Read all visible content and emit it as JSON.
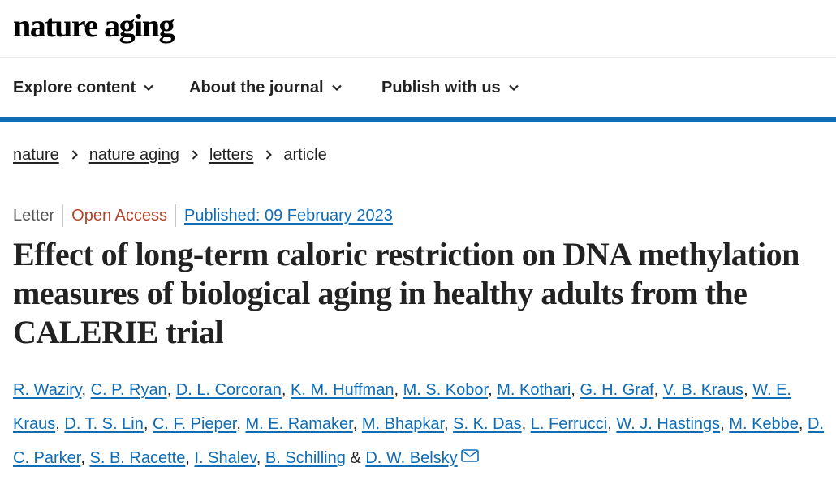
{
  "brand": {
    "logo_text": "nature aging"
  },
  "nav": {
    "items": [
      {
        "label": "Explore content",
        "icon": "chevron-down-icon"
      },
      {
        "label": "About the journal",
        "icon": "chevron-down-icon"
      },
      {
        "label": "Publish with us",
        "icon": "chevron-down-icon"
      }
    ],
    "accent_color": "#0f6cb5"
  },
  "breadcrumb": {
    "items": [
      "nature",
      "nature aging",
      "letters"
    ],
    "current": "article"
  },
  "article": {
    "type": "Letter",
    "access": "Open Access",
    "published": "Published: 09 February 2023",
    "title": "Effect of long-term caloric restriction on DNA methylation measures of biological aging in healthy adults from the CALERIE trial",
    "authors": [
      "R. Waziry",
      "C. P. Ryan",
      "D. L. Corcoran",
      "K. M. Huffman",
      "M. S. Kobor",
      "M. Kothari",
      "G. H. Graf",
      "V. B. Kraus",
      "W. E. Kraus",
      "D. T. S. Lin",
      "C. F. Pieper",
      "M. E. Ramaker",
      "M. Bhapkar",
      "S. K. Das",
      "L. Ferrucci",
      "W. J. Hastings",
      "M. Kebbe",
      "D. C. Parker",
      "S. B. Racette",
      "I. Shalev",
      "B. Schilling",
      "D. W. Belsky"
    ],
    "corresponding_icon": "mail-icon"
  },
  "colors": {
    "link": "#0f6cb5",
    "open_access": "#b0452b"
  }
}
